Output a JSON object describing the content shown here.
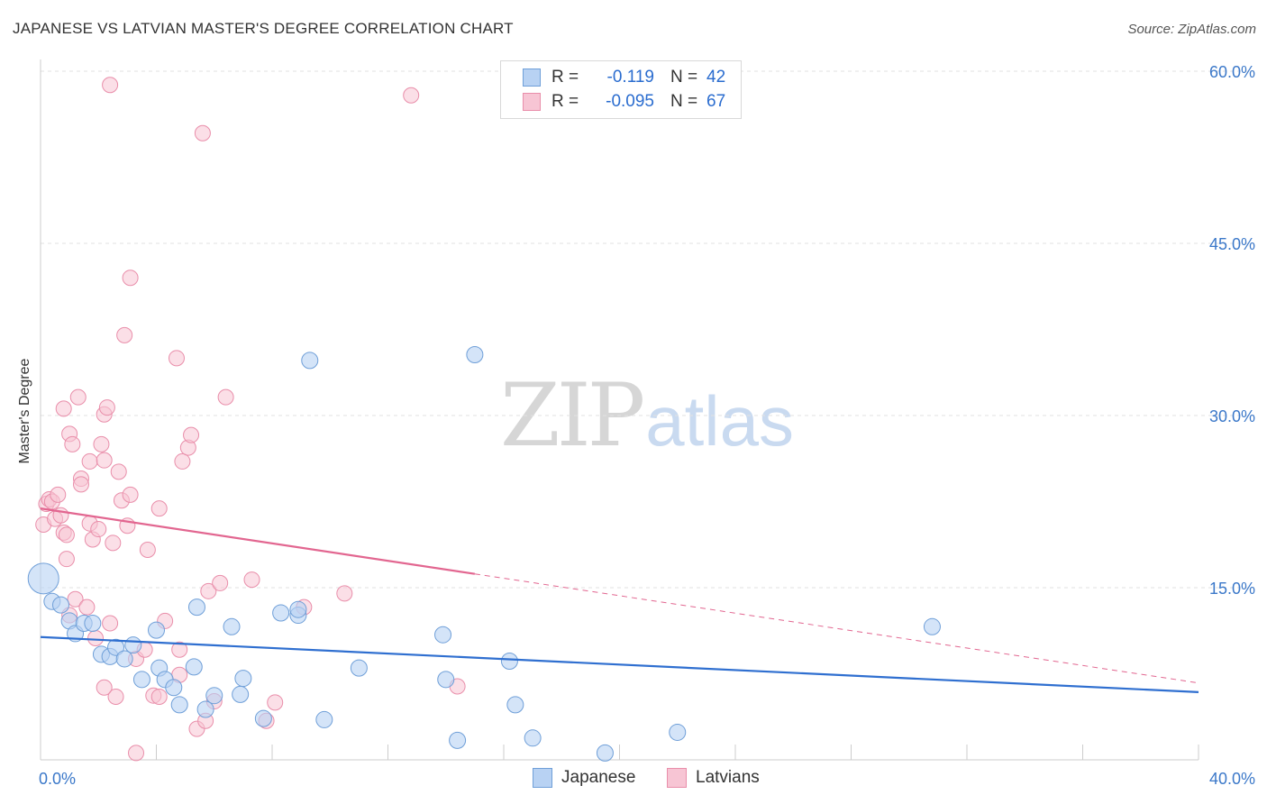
{
  "title": "JAPANESE VS LATVIAN MASTER'S DEGREE CORRELATION CHART",
  "source": "Source: ZipAtlas.com",
  "watermark": {
    "zip": "ZIP",
    "atlas": "atlas"
  },
  "colors": {
    "japanese_fill": "#b8d2f3",
    "japanese_stroke": "#6f9fd8",
    "japanese_line": "#2f6fd0",
    "latvian_fill": "#f7c5d4",
    "latvian_stroke": "#e98eaa",
    "latvian_line": "#e26690",
    "grid": "#e2e2e2",
    "axis_text": "#3b78c9"
  },
  "legend_top": {
    "rows": [
      {
        "r_label": "R =",
        "r_value": "-0.119",
        "n_label": "N =",
        "n_value": "42"
      },
      {
        "r_label": "R =",
        "r_value": "-0.095",
        "n_label": "N =",
        "n_value": "67"
      }
    ]
  },
  "legend_bottom": {
    "japanese": "Japanese",
    "latvians": "Latvians"
  },
  "chart_data": {
    "type": "scatter",
    "title": "JAPANESE VS LATVIAN MASTER'S DEGREE CORRELATION CHART",
    "xlabel": "",
    "ylabel": "Master's Degree",
    "xlim": [
      0,
      40
    ],
    "ylim": [
      0,
      60
    ],
    "x_tick_labels": [
      "0.0%",
      "40.0%"
    ],
    "y_tick_labels": [
      "15.0%",
      "30.0%",
      "45.0%",
      "60.0%"
    ],
    "y_ticks": [
      15,
      30,
      45,
      60
    ],
    "grid": "horizontal dashed",
    "series": [
      {
        "name": "Japanese",
        "r": -0.119,
        "n": 42,
        "trend": {
          "x0": 0,
          "y0": 10.7,
          "x1": 40,
          "y1": 5.9,
          "dashed_from": null
        },
        "points": [
          [
            0.1,
            15.8
          ],
          [
            0.4,
            13.8
          ],
          [
            0.7,
            13.5
          ],
          [
            1.0,
            12.1
          ],
          [
            1.2,
            11.0
          ],
          [
            1.5,
            11.9
          ],
          [
            1.8,
            11.9
          ],
          [
            2.1,
            9.2
          ],
          [
            2.4,
            9.0
          ],
          [
            2.6,
            9.8
          ],
          [
            2.9,
            8.8
          ],
          [
            3.2,
            10.0
          ],
          [
            3.5,
            7.0
          ],
          [
            4.0,
            11.3
          ],
          [
            4.1,
            8.0
          ],
          [
            4.3,
            7.0
          ],
          [
            4.6,
            6.3
          ],
          [
            4.8,
            4.8
          ],
          [
            5.3,
            8.1
          ],
          [
            5.4,
            13.3
          ],
          [
            5.7,
            4.4
          ],
          [
            6.0,
            5.6
          ],
          [
            6.6,
            11.6
          ],
          [
            6.9,
            5.7
          ],
          [
            7.0,
            7.1
          ],
          [
            7.7,
            3.6
          ],
          [
            8.3,
            12.8
          ],
          [
            8.9,
            12.6
          ],
          [
            8.9,
            13.1
          ],
          [
            9.3,
            34.8
          ],
          [
            9.8,
            3.5
          ],
          [
            11.0,
            8.0
          ],
          [
            13.9,
            10.9
          ],
          [
            14.0,
            7.0
          ],
          [
            14.4,
            1.7
          ],
          [
            15.0,
            35.3
          ],
          [
            16.2,
            8.6
          ],
          [
            16.4,
            4.8
          ],
          [
            17.0,
            1.9
          ],
          [
            19.5,
            0.6
          ],
          [
            22.0,
            2.4
          ],
          [
            30.8,
            11.6
          ]
        ],
        "bubble_radius_px": [
          17,
          9,
          9,
          9,
          9,
          9,
          9,
          9,
          9,
          9,
          9,
          9,
          9,
          9,
          9,
          9,
          9,
          9,
          9,
          9,
          9,
          9,
          9,
          9,
          9,
          9,
          9,
          9,
          9,
          9,
          9,
          9,
          9,
          9,
          9,
          9,
          9,
          9,
          9,
          9,
          9,
          9
        ]
      },
      {
        "name": "Latvians",
        "r": -0.095,
        "n": 67,
        "trend": {
          "x0": 0,
          "y0": 21.9,
          "x1": 40,
          "y1": 6.7,
          "dashed_from": 15.0
        },
        "points": [
          [
            0.1,
            20.5
          ],
          [
            0.2,
            22.3
          ],
          [
            0.3,
            22.7
          ],
          [
            0.4,
            22.5
          ],
          [
            0.5,
            21.0
          ],
          [
            0.6,
            23.1
          ],
          [
            0.7,
            21.3
          ],
          [
            0.8,
            19.8
          ],
          [
            0.8,
            30.6
          ],
          [
            0.9,
            17.5
          ],
          [
            0.9,
            19.6
          ],
          [
            1.0,
            28.4
          ],
          [
            1.1,
            27.5
          ],
          [
            1.2,
            14.0
          ],
          [
            1.3,
            31.6
          ],
          [
            1.4,
            24.5
          ],
          [
            1.4,
            24.0
          ],
          [
            1.6,
            13.3
          ],
          [
            1.7,
            26.0
          ],
          [
            1.7,
            20.6
          ],
          [
            1.8,
            19.2
          ],
          [
            1.9,
            10.6
          ],
          [
            2.0,
            20.1
          ],
          [
            2.1,
            27.5
          ],
          [
            2.2,
            26.1
          ],
          [
            2.2,
            30.1
          ],
          [
            2.3,
            30.7
          ],
          [
            2.4,
            11.9
          ],
          [
            2.4,
            58.8
          ],
          [
            2.5,
            18.9
          ],
          [
            2.6,
            5.5
          ],
          [
            2.7,
            25.1
          ],
          [
            2.8,
            22.6
          ],
          [
            2.9,
            37.0
          ],
          [
            3.0,
            20.4
          ],
          [
            3.1,
            23.1
          ],
          [
            3.1,
            42.0
          ],
          [
            3.3,
            0.6
          ],
          [
            3.3,
            8.8
          ],
          [
            3.6,
            9.6
          ],
          [
            3.7,
            18.3
          ],
          [
            3.9,
            5.6
          ],
          [
            4.1,
            5.5
          ],
          [
            4.1,
            21.9
          ],
          [
            4.3,
            12.1
          ],
          [
            4.7,
            35.0
          ],
          [
            4.8,
            7.4
          ],
          [
            4.8,
            9.6
          ],
          [
            4.9,
            26.0
          ],
          [
            5.1,
            27.2
          ],
          [
            5.2,
            28.3
          ],
          [
            5.4,
            2.7
          ],
          [
            5.6,
            54.6
          ],
          [
            5.7,
            3.4
          ],
          [
            5.8,
            14.7
          ],
          [
            6.0,
            5.1
          ],
          [
            6.2,
            15.4
          ],
          [
            6.4,
            31.6
          ],
          [
            7.3,
            15.7
          ],
          [
            7.8,
            3.4
          ],
          [
            8.1,
            5.0
          ],
          [
            9.1,
            13.3
          ],
          [
            10.5,
            14.5
          ],
          [
            12.8,
            57.9
          ],
          [
            14.4,
            6.4
          ],
          [
            1.0,
            12.6
          ],
          [
            2.2,
            6.3
          ]
        ]
      }
    ]
  }
}
